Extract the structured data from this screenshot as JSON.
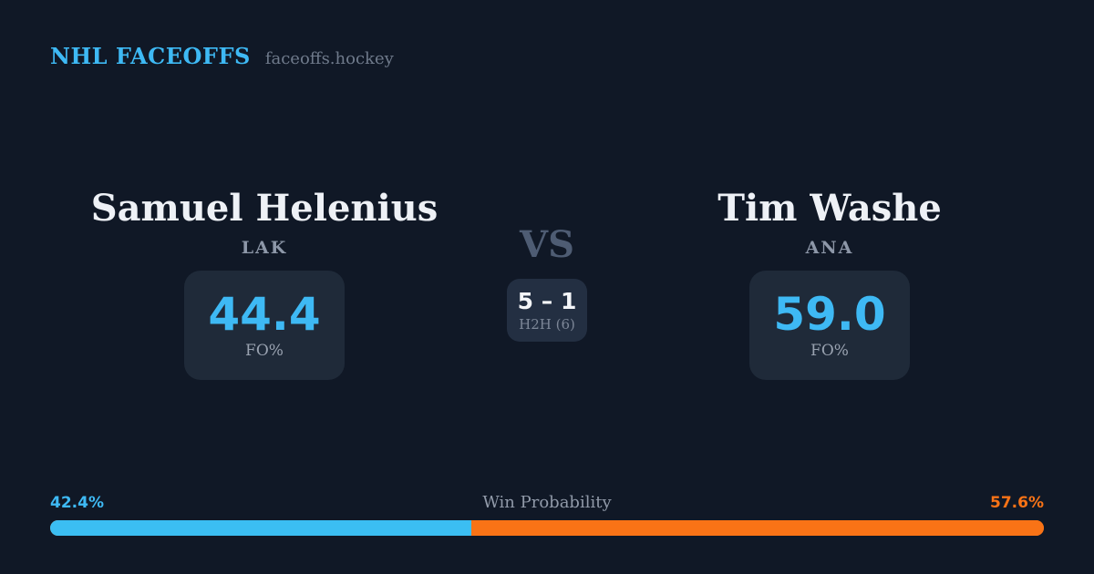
{
  "header": {
    "brand": "NHL FACEOFFS",
    "site": "faceoffs.hockey"
  },
  "matchup": {
    "player_left": {
      "name": "Samuel Helenius",
      "team": "LAK",
      "fo_pct": "44.4",
      "fo_label": "FO%"
    },
    "vs_label": "VS",
    "h2h": {
      "score": "5 – 1",
      "label": "H2H (6)"
    },
    "player_right": {
      "name": "Tim Washe",
      "team": "ANA",
      "fo_pct": "59.0",
      "fo_label": "FO%"
    }
  },
  "win_probability": {
    "label": "Win Probability",
    "left_pct_text": "42.4%",
    "right_pct_text": "57.6%",
    "left_value": 42.4,
    "right_value": 57.6
  },
  "colors": {
    "background": "#101826",
    "panel": "#1f2a39",
    "panel_h2h": "#232f42",
    "accent_blue": "#3eb9f4",
    "accent_orange": "#f97316",
    "text_primary": "#eef1f6",
    "text_muted": "#8d97a8",
    "vs_text": "#4e5c73"
  }
}
